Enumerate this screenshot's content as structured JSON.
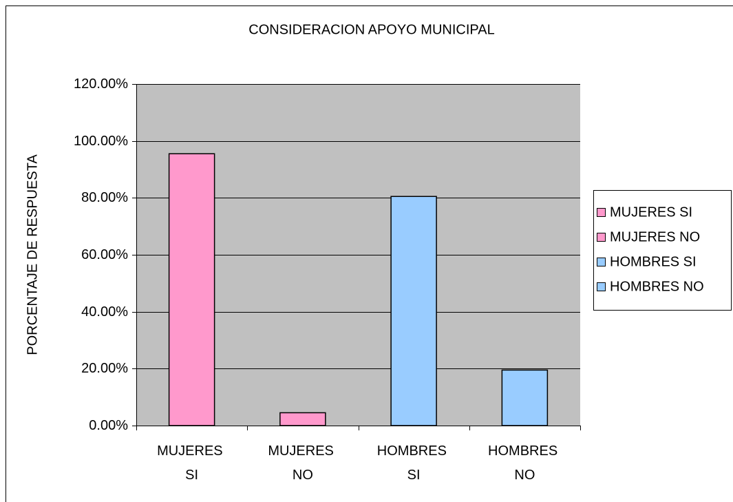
{
  "chart_data": {
    "type": "bar",
    "title": "CONSIDERACION APOYO MUNICIPAL",
    "y_label": "PORCENTAJE DE RESPUESTA",
    "categories": [
      "MUJERES SI",
      "MUJERES NO",
      "HOMBRES SI",
      "HOMBRES NO"
    ],
    "values": [
      95.5,
      4.5,
      80.5,
      19.5
    ],
    "colors": [
      "#ff99cc",
      "#ff99cc",
      "#99ccff",
      "#99ccff"
    ],
    "ylim": [
      0,
      120
    ],
    "yticks": [
      {
        "value": 0,
        "label": "0.00%"
      },
      {
        "value": 20,
        "label": "20.00%"
      },
      {
        "value": 40,
        "label": "40.00%"
      },
      {
        "value": 60,
        "label": "60.00%"
      },
      {
        "value": 80,
        "label": "80.00%"
      },
      {
        "value": 100,
        "label": "100.00%"
      },
      {
        "value": 120,
        "label": "120.00%"
      }
    ],
    "grid": true,
    "legend": "right"
  }
}
